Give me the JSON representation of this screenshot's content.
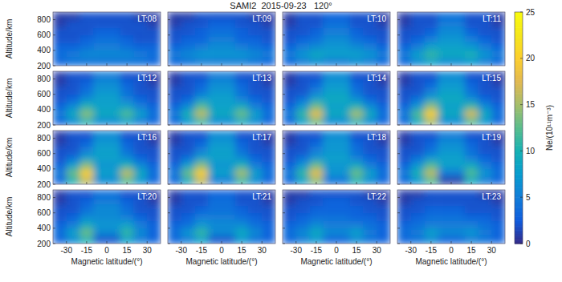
{
  "chart_data": {
    "type": "heatmap",
    "title": "SAMI2  2015-09-23   120°",
    "x_label": "Magnetic latitude/(°)",
    "y_label": "Altitude/km",
    "xlim": [
      -40,
      40
    ],
    "xticks": [
      -30,
      -15,
      0,
      15,
      30
    ],
    "ylim": [
      200,
      900
    ],
    "yticks": [
      200,
      400,
      600,
      800
    ],
    "x_bins": [
      -40,
      -30,
      -20,
      -10,
      0,
      10,
      20,
      30,
      40
    ],
    "y_bins": [
      200,
      300,
      400,
      500,
      600,
      700,
      800,
      900
    ],
    "colorbar": {
      "label": "Ne/(10¹¹m⁻³)",
      "range": [
        0,
        25
      ],
      "ticks": [
        0,
        5,
        10,
        15,
        20,
        25
      ]
    },
    "panels": [
      {
        "label": "LT:08",
        "cells": [
          [
            3,
            4,
            4,
            4,
            4,
            4,
            4,
            3
          ],
          [
            4,
            5,
            6,
            6,
            6,
            6,
            5,
            4
          ],
          [
            3,
            3,
            4,
            5,
            5,
            4,
            3,
            3
          ],
          [
            2,
            2,
            3,
            4,
            4,
            3,
            2,
            2
          ],
          [
            2,
            2,
            2,
            3,
            3,
            2,
            2,
            2
          ],
          [
            1,
            2,
            2,
            2,
            2,
            2,
            2,
            1
          ],
          [
            1,
            1,
            2,
            2,
            2,
            2,
            1,
            1
          ]
        ]
      },
      {
        "label": "LT:09",
        "cells": [
          [
            3,
            4,
            5,
            5,
            5,
            5,
            4,
            3
          ],
          [
            5,
            6,
            7,
            7,
            7,
            7,
            6,
            5
          ],
          [
            3,
            4,
            5,
            6,
            6,
            5,
            4,
            3
          ],
          [
            2,
            3,
            3,
            5,
            5,
            3,
            3,
            2
          ],
          [
            2,
            2,
            3,
            4,
            4,
            3,
            2,
            2
          ],
          [
            1,
            2,
            2,
            3,
            3,
            2,
            2,
            1
          ],
          [
            1,
            1,
            2,
            2,
            2,
            2,
            1,
            1
          ]
        ]
      },
      {
        "label": "LT:10",
        "cells": [
          [
            3,
            5,
            6,
            5,
            5,
            6,
            5,
            3
          ],
          [
            5,
            7,
            9,
            8,
            8,
            8,
            7,
            5
          ],
          [
            3,
            5,
            6,
            7,
            7,
            6,
            5,
            3
          ],
          [
            2,
            3,
            4,
            6,
            6,
            4,
            3,
            2
          ],
          [
            2,
            2,
            3,
            5,
            5,
            3,
            2,
            2
          ],
          [
            1,
            2,
            2,
            4,
            4,
            2,
            2,
            1
          ],
          [
            1,
            2,
            2,
            3,
            3,
            2,
            2,
            1
          ]
        ]
      },
      {
        "label": "LT:11",
        "cells": [
          [
            3,
            6,
            8,
            6,
            6,
            7,
            5,
            3
          ],
          [
            5,
            8,
            11,
            9,
            9,
            10,
            7,
            5
          ],
          [
            3,
            5,
            8,
            8,
            8,
            7,
            5,
            3
          ],
          [
            2,
            3,
            5,
            7,
            7,
            5,
            3,
            2
          ],
          [
            2,
            2,
            3,
            6,
            6,
            3,
            2,
            2
          ],
          [
            1,
            2,
            2,
            5,
            5,
            2,
            2,
            1
          ],
          [
            1,
            2,
            2,
            4,
            4,
            2,
            2,
            1
          ]
        ]
      },
      {
        "label": "LT:12",
        "cells": [
          [
            3,
            6,
            10,
            6,
            6,
            8,
            5,
            3
          ],
          [
            5,
            9,
            14,
            9,
            9,
            12,
            8,
            4
          ],
          [
            3,
            6,
            10,
            8,
            8,
            8,
            5,
            3
          ],
          [
            2,
            3,
            6,
            8,
            8,
            5,
            3,
            2
          ],
          [
            2,
            2,
            4,
            7,
            7,
            4,
            2,
            2
          ],
          [
            1,
            2,
            3,
            6,
            6,
            3,
            2,
            1
          ],
          [
            1,
            2,
            2,
            5,
            5,
            2,
            2,
            1
          ]
        ]
      },
      {
        "label": "LT:13",
        "cells": [
          [
            3,
            7,
            11,
            6,
            6,
            9,
            6,
            3
          ],
          [
            5,
            10,
            16,
            9,
            9,
            13,
            8,
            4
          ],
          [
            3,
            6,
            12,
            8,
            8,
            9,
            5,
            3
          ],
          [
            2,
            3,
            7,
            8,
            8,
            5,
            3,
            2
          ],
          [
            2,
            2,
            4,
            7,
            7,
            4,
            2,
            2
          ],
          [
            1,
            2,
            3,
            6,
            6,
            3,
            2,
            1
          ],
          [
            1,
            2,
            2,
            5,
            5,
            2,
            2,
            1
          ]
        ]
      },
      {
        "label": "LT:14",
        "cells": [
          [
            3,
            8,
            13,
            6,
            6,
            10,
            6,
            3
          ],
          [
            5,
            11,
            18,
            9,
            9,
            15,
            9,
            4
          ],
          [
            3,
            7,
            13,
            8,
            8,
            10,
            6,
            3
          ],
          [
            2,
            4,
            8,
            9,
            9,
            6,
            3,
            2
          ],
          [
            2,
            2,
            5,
            8,
            8,
            4,
            2,
            2
          ],
          [
            1,
            2,
            3,
            7,
            7,
            3,
            2,
            1
          ],
          [
            1,
            2,
            2,
            6,
            6,
            2,
            2,
            1
          ]
        ]
      },
      {
        "label": "LT:15",
        "cells": [
          [
            3,
            9,
            15,
            6,
            6,
            12,
            7,
            3
          ],
          [
            5,
            12,
            20,
            9,
            9,
            17,
            9,
            4
          ],
          [
            3,
            7,
            14,
            8,
            8,
            11,
            6,
            3
          ],
          [
            2,
            4,
            8,
            9,
            9,
            6,
            3,
            2
          ],
          [
            2,
            2,
            5,
            8,
            8,
            4,
            2,
            2
          ],
          [
            1,
            2,
            3,
            7,
            7,
            3,
            2,
            1
          ],
          [
            1,
            2,
            2,
            6,
            6,
            2,
            2,
            1
          ]
        ]
      },
      {
        "label": "LT:16",
        "cells": [
          [
            3,
            10,
            16,
            6,
            6,
            12,
            7,
            3
          ],
          [
            5,
            13,
            20,
            8,
            8,
            16,
            9,
            4
          ],
          [
            3,
            8,
            14,
            7,
            7,
            10,
            6,
            3
          ],
          [
            2,
            4,
            8,
            8,
            8,
            6,
            3,
            2
          ],
          [
            2,
            2,
            5,
            8,
            8,
            4,
            2,
            2
          ],
          [
            1,
            2,
            3,
            7,
            7,
            3,
            2,
            1
          ],
          [
            1,
            2,
            2,
            6,
            6,
            2,
            2,
            1
          ]
        ]
      },
      {
        "label": "LT:17",
        "cells": [
          [
            3,
            9,
            16,
            5,
            5,
            11,
            6,
            3
          ],
          [
            5,
            13,
            20,
            8,
            8,
            15,
            8,
            4
          ],
          [
            3,
            8,
            14,
            7,
            7,
            10,
            5,
            3
          ],
          [
            2,
            4,
            8,
            8,
            8,
            6,
            3,
            2
          ],
          [
            2,
            2,
            5,
            8,
            8,
            4,
            2,
            2
          ],
          [
            1,
            2,
            3,
            7,
            7,
            3,
            2,
            1
          ],
          [
            1,
            2,
            2,
            6,
            6,
            2,
            2,
            1
          ]
        ]
      },
      {
        "label": "LT:18",
        "cells": [
          [
            3,
            8,
            14,
            4,
            4,
            10,
            6,
            3
          ],
          [
            5,
            11,
            18,
            7,
            7,
            13,
            8,
            4
          ],
          [
            3,
            7,
            13,
            7,
            7,
            9,
            5,
            3
          ],
          [
            2,
            4,
            7,
            8,
            8,
            5,
            3,
            2
          ],
          [
            2,
            2,
            5,
            7,
            7,
            4,
            2,
            2
          ],
          [
            1,
            2,
            3,
            7,
            7,
            3,
            2,
            1
          ],
          [
            1,
            2,
            2,
            6,
            6,
            2,
            2,
            1
          ]
        ]
      },
      {
        "label": "LT:19",
        "cells": [
          [
            3,
            7,
            12,
            1,
            1,
            9,
            5,
            3
          ],
          [
            5,
            10,
            16,
            5,
            5,
            12,
            7,
            4
          ],
          [
            3,
            7,
            12,
            8,
            8,
            9,
            5,
            3
          ],
          [
            2,
            4,
            7,
            8,
            8,
            5,
            3,
            2
          ],
          [
            2,
            2,
            4,
            7,
            7,
            4,
            2,
            2
          ],
          [
            1,
            2,
            3,
            6,
            6,
            3,
            2,
            1
          ],
          [
            1,
            2,
            2,
            5,
            5,
            2,
            2,
            1
          ]
        ]
      },
      {
        "label": "LT:20",
        "cells": [
          [
            3,
            6,
            10,
            2,
            2,
            8,
            5,
            3
          ],
          [
            4,
            8,
            13,
            6,
            6,
            11,
            6,
            3
          ],
          [
            3,
            5,
            9,
            7,
            7,
            8,
            5,
            3
          ],
          [
            2,
            3,
            6,
            6,
            6,
            5,
            3,
            2
          ],
          [
            2,
            2,
            4,
            6,
            6,
            4,
            2,
            2
          ],
          [
            1,
            2,
            3,
            5,
            5,
            3,
            2,
            1
          ],
          [
            1,
            2,
            2,
            4,
            4,
            2,
            2,
            1
          ]
        ]
      },
      {
        "label": "LT:21",
        "cells": [
          [
            3,
            5,
            8,
            2,
            2,
            7,
            4,
            3
          ],
          [
            4,
            7,
            11,
            6,
            6,
            9,
            6,
            3
          ],
          [
            3,
            4,
            7,
            6,
            6,
            6,
            4,
            3
          ],
          [
            2,
            3,
            5,
            5,
            5,
            4,
            3,
            2
          ],
          [
            2,
            2,
            3,
            4,
            4,
            3,
            2,
            2
          ],
          [
            1,
            2,
            2,
            4,
            4,
            2,
            2,
            1
          ],
          [
            1,
            2,
            2,
            3,
            3,
            2,
            2,
            1
          ]
        ]
      },
      {
        "label": "LT:22",
        "cells": [
          [
            3,
            5,
            7,
            3,
            3,
            6,
            4,
            3
          ],
          [
            4,
            6,
            9,
            6,
            6,
            8,
            5,
            3
          ],
          [
            3,
            4,
            6,
            5,
            5,
            5,
            4,
            3
          ],
          [
            2,
            3,
            4,
            4,
            4,
            3,
            3,
            2
          ],
          [
            2,
            2,
            3,
            3,
            3,
            3,
            2,
            2
          ],
          [
            1,
            2,
            2,
            3,
            3,
            2,
            2,
            1
          ],
          [
            1,
            1,
            2,
            2,
            2,
            2,
            1,
            1
          ]
        ]
      },
      {
        "label": "LT:23",
        "cells": [
          [
            3,
            4,
            6,
            3,
            3,
            5,
            4,
            3
          ],
          [
            4,
            5,
            8,
            6,
            6,
            7,
            5,
            3
          ],
          [
            3,
            4,
            5,
            5,
            5,
            5,
            4,
            3
          ],
          [
            2,
            3,
            4,
            4,
            4,
            3,
            3,
            2
          ],
          [
            2,
            2,
            3,
            3,
            3,
            2,
            2,
            2
          ],
          [
            1,
            2,
            2,
            2,
            2,
            2,
            2,
            1
          ],
          [
            1,
            1,
            2,
            2,
            2,
            2,
            1,
            1
          ]
        ]
      }
    ]
  }
}
